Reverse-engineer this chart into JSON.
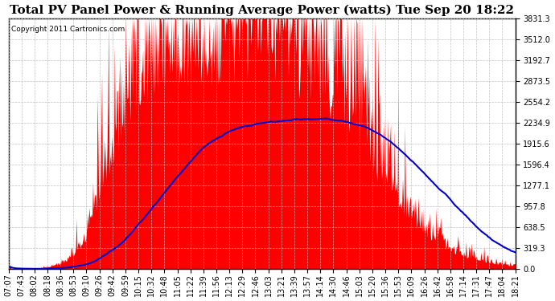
{
  "title": "Total PV Panel Power & Running Average Power (watts) Tue Sep 20 18:22",
  "copyright": "Copyright 2011 Cartronics.com",
  "ymax": 3831.3,
  "yticks": [
    0.0,
    319.3,
    638.5,
    957.8,
    1277.1,
    1596.4,
    1915.6,
    2234.9,
    2554.2,
    2873.5,
    3192.7,
    3512.0,
    3831.3
  ],
  "ytick_labels": [
    "0.0",
    "319.3",
    "638.5",
    "957.8",
    "1277.1",
    "1596.4",
    "1915.6",
    "2234.9",
    "2554.2",
    "2873.5",
    "3192.7",
    "3512.0",
    "3831.3"
  ],
  "xtick_labels": [
    "07:07",
    "07:43",
    "08:02",
    "08:18",
    "08:36",
    "08:53",
    "09:10",
    "09:26",
    "09:42",
    "09:59",
    "10:15",
    "10:32",
    "10:48",
    "11:05",
    "11:22",
    "11:39",
    "11:56",
    "12:13",
    "12:29",
    "12:46",
    "13:03",
    "13:21",
    "13:39",
    "13:57",
    "14:14",
    "14:30",
    "14:46",
    "15:03",
    "15:20",
    "15:36",
    "15:53",
    "16:09",
    "16:26",
    "16:42",
    "16:58",
    "17:14",
    "17:31",
    "17:47",
    "18:04",
    "18:21"
  ],
  "pv_color": "#ff0000",
  "avg_color": "#0000cc",
  "bg_color": "#ffffff",
  "plot_bg_color": "#ffffff",
  "grid_color": "#bbbbbb",
  "title_fontsize": 11,
  "copyright_fontsize": 6.5,
  "tick_fontsize": 7
}
